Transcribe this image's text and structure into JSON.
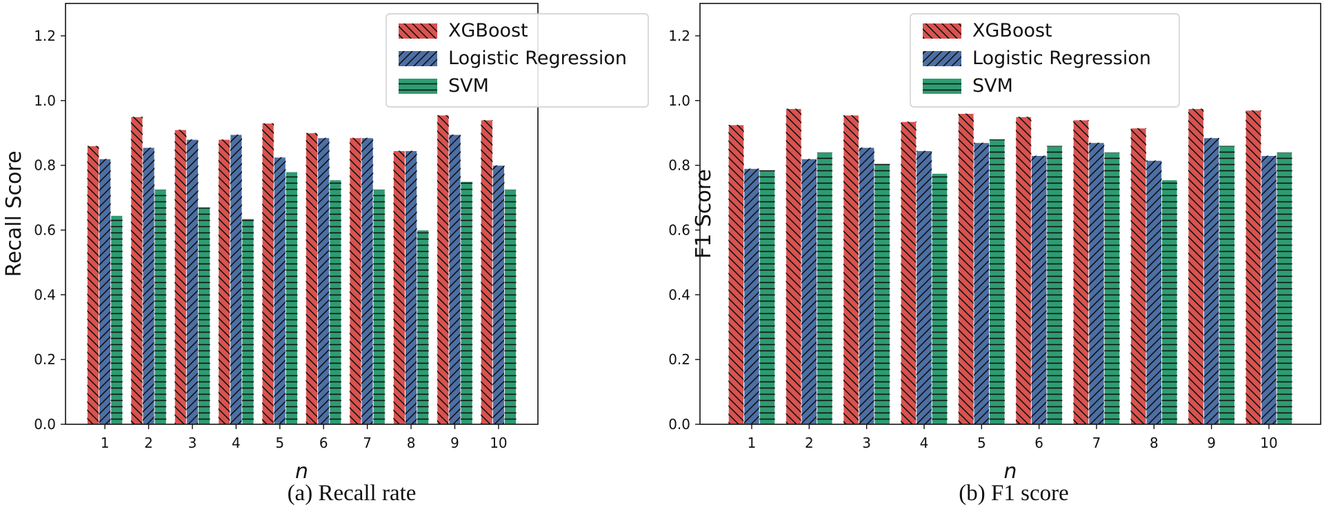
{
  "chart_data": [
    {
      "type": "bar",
      "title": "",
      "caption": "(a) Recall rate",
      "xlabel": "n",
      "ylabel": "Recall Score",
      "categories": [
        "1",
        "2",
        "3",
        "4",
        "5",
        "6",
        "7",
        "8",
        "9",
        "10"
      ],
      "series": [
        {
          "name": "XGBoost",
          "color": "#d9534f",
          "pattern": "backslash",
          "values": [
            0.86,
            0.95,
            0.91,
            0.88,
            0.93,
            0.9,
            0.885,
            0.845,
            0.955,
            0.94
          ]
        },
        {
          "name": "Logistic Regression",
          "color": "#4c6fa5",
          "pattern": "slash",
          "values": [
            0.82,
            0.855,
            0.88,
            0.895,
            0.825,
            0.885,
            0.885,
            0.845,
            0.895,
            0.8
          ]
        },
        {
          "name": "SVM",
          "color": "#2e9c72",
          "pattern": "horizontal",
          "values": [
            0.645,
            0.725,
            0.67,
            0.635,
            0.78,
            0.755,
            0.725,
            0.6,
            0.75,
            0.725
          ]
        }
      ],
      "ylim": [
        0.0,
        1.3
      ],
      "yticks": [
        "0.0",
        "0.2",
        "0.4",
        "0.6",
        "0.8",
        "1.0",
        "1.2"
      ],
      "legend": "top-right",
      "grid": false
    },
    {
      "type": "bar",
      "title": "",
      "caption": "(b) F1 score",
      "xlabel": "n",
      "ylabel": "F1 Score",
      "categories": [
        "1",
        "2",
        "3",
        "4",
        "5",
        "6",
        "7",
        "8",
        "9",
        "10"
      ],
      "series": [
        {
          "name": "XGBoost",
          "color": "#d9534f",
          "pattern": "backslash",
          "values": [
            0.925,
            0.975,
            0.955,
            0.935,
            0.96,
            0.95,
            0.94,
            0.915,
            0.975,
            0.97
          ]
        },
        {
          "name": "Logistic Regression",
          "color": "#4c6fa5",
          "pattern": "slash",
          "values": [
            0.79,
            0.82,
            0.855,
            0.845,
            0.87,
            0.83,
            0.87,
            0.815,
            0.885,
            0.83
          ]
        },
        {
          "name": "SVM",
          "color": "#2e9c72",
          "pattern": "horizontal",
          "values": [
            0.785,
            0.84,
            0.805,
            0.775,
            0.88,
            0.86,
            0.84,
            0.755,
            0.86,
            0.84
          ]
        }
      ],
      "ylim": [
        0.0,
        1.3
      ],
      "yticks": [
        "0.0",
        "0.2",
        "0.4",
        "0.6",
        "0.8",
        "1.0",
        "1.2"
      ],
      "legend": "top-right",
      "grid": false
    }
  ]
}
